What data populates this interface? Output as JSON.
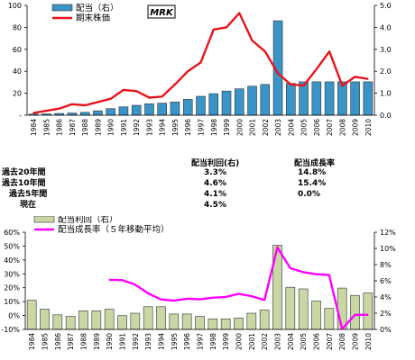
{
  "chart_data": [
    {
      "type": "bar+line",
      "badge": "MRK",
      "legend": {
        "bar": "配当（右）",
        "line": "期末株価"
      },
      "categories": [
        "1984",
        "1985",
        "1986",
        "1987",
        "1988",
        "1989",
        "1990",
        "1991",
        "1992",
        "1993",
        "1994",
        "1995",
        "1996",
        "1997",
        "1998",
        "1999",
        "2000",
        "2001",
        "2002",
        "2003",
        "2004",
        "2005",
        "2006",
        "2007",
        "2008",
        "2009",
        "2010"
      ],
      "left_axis": {
        "ticks": [
          "-",
          "20",
          "40",
          "60",
          "80",
          "100"
        ],
        "ylim": [
          0,
          100
        ]
      },
      "right_axis": {
        "ticks": [
          "0.0",
          "1.0",
          "2.0",
          "3.0",
          "4.0",
          "5.0"
        ],
        "ylim": [
          0,
          5
        ]
      },
      "series": [
        {
          "name": "配当（右）",
          "kind": "bar",
          "axis": "right",
          "color": "#3a94c8",
          "values": [
            0.05,
            0.06,
            0.08,
            0.1,
            0.13,
            0.2,
            0.3,
            0.38,
            0.45,
            0.52,
            0.55,
            0.6,
            0.72,
            0.86,
            0.98,
            1.1,
            1.2,
            1.32,
            1.4,
            4.3,
            1.45,
            1.52,
            1.52,
            1.52,
            1.52,
            1.52,
            1.52
          ]
        },
        {
          "name": "期末株価",
          "kind": "line",
          "axis": "left",
          "color": "#e8141b",
          "values": [
            2,
            4,
            6,
            10,
            9,
            12,
            15,
            23,
            22,
            16,
            17,
            28,
            40,
            48,
            78,
            80,
            93,
            68,
            58,
            38,
            28,
            27,
            42,
            58,
            27,
            35,
            33
          ]
        }
      ]
    },
    {
      "type": "bar+line",
      "legend": {
        "bar": "配当利回（右）",
        "line": "配当成長率（５年移動平均）"
      },
      "categories": [
        "1984",
        "1985",
        "1986",
        "1987",
        "1988",
        "1989",
        "1990",
        "1991",
        "1992",
        "1993",
        "1994",
        "1995",
        "1996",
        "1997",
        "1998",
        "1999",
        "2000",
        "2001",
        "2002",
        "2003",
        "2004",
        "2005",
        "2006",
        "2007",
        "2008",
        "2009",
        "2010"
      ],
      "left_axis": {
        "ticks": [
          "-10%",
          "0%",
          "10%",
          "20%",
          "30%",
          "40%",
          "50%",
          "60%"
        ],
        "ylim": [
          -10,
          60
        ]
      },
      "right_axis": {
        "ticks": [
          "0%",
          "2%",
          "4%",
          "6%",
          "8%",
          "10%",
          "12%"
        ],
        "ylim": [
          0,
          12
        ]
      },
      "series": [
        {
          "name": "配当利回（右）",
          "kind": "bar",
          "axis": "right",
          "color": "#c8d7a4",
          "values": [
            3.6,
            2.5,
            1.8,
            1.6,
            2.3,
            2.3,
            2.5,
            1.7,
            2.0,
            2.8,
            2.8,
            1.9,
            1.9,
            1.6,
            1.3,
            1.3,
            1.4,
            2.0,
            2.4,
            10.4,
            5.2,
            5.0,
            3.5,
            2.6,
            5.1,
            4.2,
            4.5
          ]
        },
        {
          "name": "配当成長率（５年移動平均）",
          "kind": "line",
          "axis": "left",
          "color": "#ff00ff",
          "values": [
            null,
            null,
            null,
            null,
            null,
            null,
            25.7,
            25.5,
            22.3,
            15.9,
            11.6,
            10.7,
            12.1,
            11.7,
            12.8,
            13.4,
            15.6,
            13.9,
            11.2,
            49.2,
            34.1,
            31.2,
            29.7,
            29.2,
            -9.7,
            0.5,
            0.5
          ]
        }
      ]
    }
  ],
  "stats": {
    "header_yield": "配当利回(右)",
    "header_growth": "配当成長率",
    "rows": [
      {
        "label": "過去20年間",
        "yield": "3.3%",
        "growth": "14.8%"
      },
      {
        "label": "過去10年間",
        "yield": "4.6%",
        "growth": "15.4%"
      },
      {
        "label": "過去5年間",
        "yield": "4.1%",
        "growth": "0.0%"
      },
      {
        "label": "現在",
        "yield": "4.5%",
        "growth": ""
      }
    ]
  }
}
